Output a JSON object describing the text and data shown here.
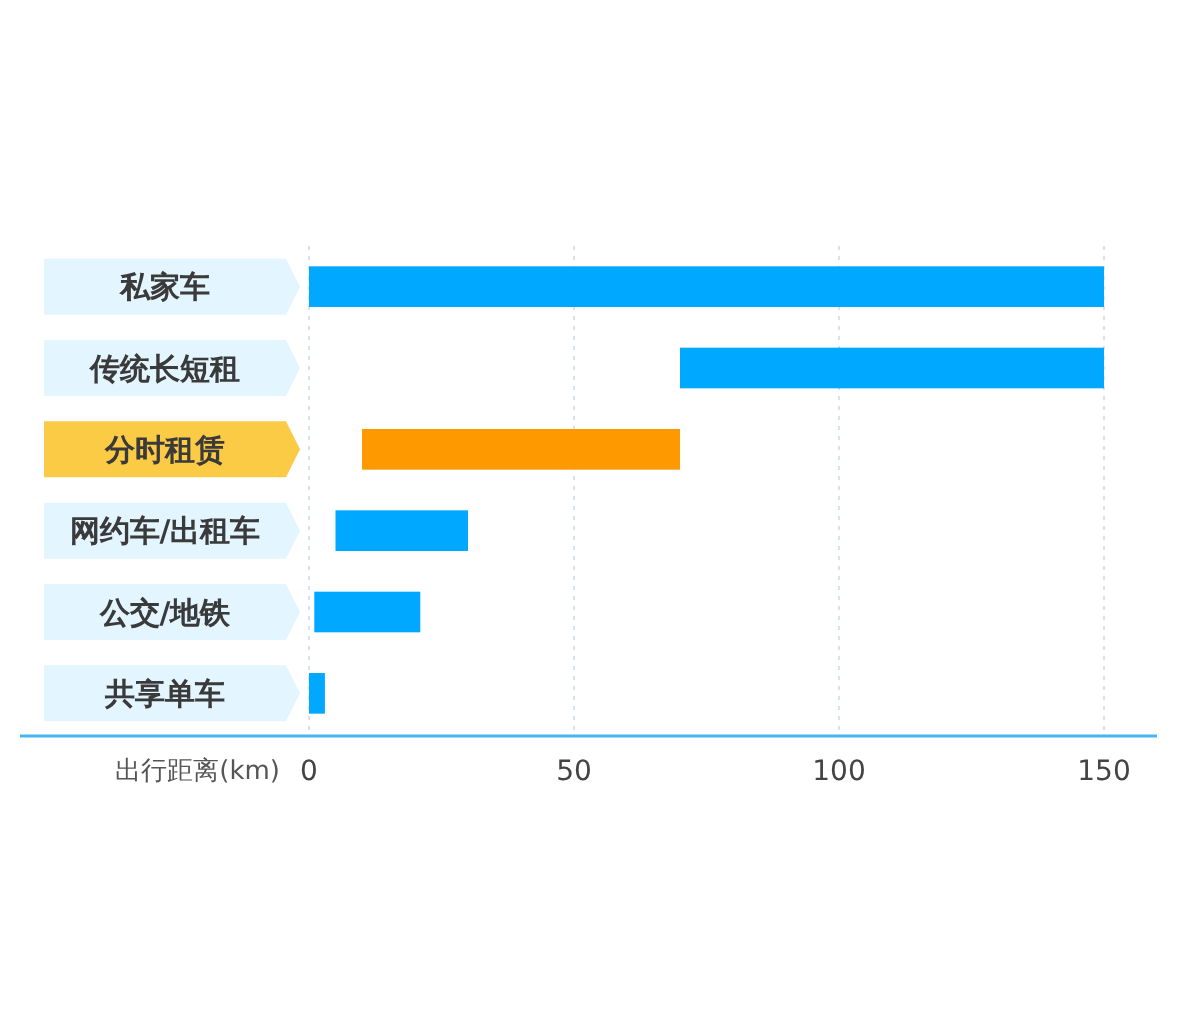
{
  "chart_data": {
    "type": "bar",
    "orientation": "horizontal",
    "xlabel": "出行距离(km)",
    "categories": [
      "私家车",
      "传统长短租",
      "分时租赁",
      "网约车/出租车",
      "公交/地铁",
      "共享单车"
    ],
    "base": [
      0,
      70,
      10,
      5,
      1,
      0
    ],
    "values": [
      150,
      80,
      60,
      25,
      20,
      3
    ],
    "colors": [
      "#00a8ff",
      "#00a8ff",
      "#ff9900",
      "#00a8ff",
      "#00a8ff",
      "#00a8ff"
    ],
    "xlim": [
      0,
      160
    ],
    "xticks": [
      0,
      50,
      100,
      150
    ],
    "grid": "x"
  }
}
